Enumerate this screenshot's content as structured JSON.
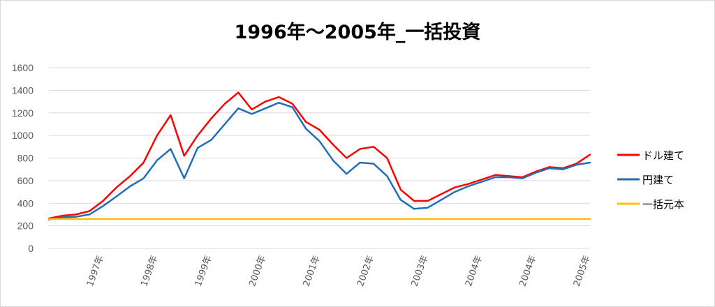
{
  "chart_data": {
    "type": "line",
    "title": "1996年～2005年_一括投資",
    "xlabel": "",
    "ylabel": "",
    "ylim": [
      0,
      1600
    ],
    "yticks": [
      0,
      200,
      400,
      600,
      800,
      1000,
      1200,
      1400,
      1600
    ],
    "grid": true,
    "legend_position": "right",
    "x_tick_labels": [
      "1997年",
      "1998年",
      "1999年",
      "2000年",
      "2001年",
      "2002年",
      "2003年",
      "2004年",
      "2004年",
      "2005年"
    ],
    "x": [
      0,
      0.25,
      0.5,
      0.75,
      1.0,
      1.25,
      1.5,
      1.75,
      2.0,
      2.25,
      2.5,
      2.75,
      3.0,
      3.25,
      3.5,
      3.75,
      4.0,
      4.25,
      4.5,
      4.75,
      5.0,
      5.25,
      5.5,
      5.75,
      6.0,
      6.25,
      6.5,
      6.75,
      7.0,
      7.25,
      7.5,
      7.75,
      8.0,
      8.25,
      8.5,
      8.75,
      9.0,
      9.25,
      9.5,
      9.75,
      10.0
    ],
    "series": [
      {
        "name": "ドル建て",
        "color": "#ff0000",
        "values": [
          265,
          290,
          300,
          330,
          420,
          540,
          640,
          760,
          1000,
          1180,
          820,
          1000,
          1150,
          1280,
          1380,
          1230,
          1300,
          1340,
          1280,
          1120,
          1050,
          920,
          800,
          880,
          900,
          800,
          520,
          420,
          420,
          480,
          540,
          570,
          610,
          650,
          640,
          630,
          680,
          720,
          710,
          750,
          830
        ]
      },
      {
        "name": "円建て",
        "color": "#1f6fb8",
        "values": [
          255,
          275,
          280,
          300,
          375,
          460,
          550,
          620,
          780,
          880,
          620,
          890,
          960,
          1100,
          1240,
          1190,
          1240,
          1290,
          1250,
          1060,
          950,
          780,
          660,
          760,
          750,
          640,
          430,
          350,
          360,
          430,
          500,
          550,
          590,
          630,
          630,
          620,
          670,
          710,
          700,
          740,
          760
        ]
      },
      {
        "name": "一括元本",
        "color": "#ffc000",
        "values": [
          260,
          260,
          260,
          260,
          260,
          260,
          260,
          260,
          260,
          260,
          260,
          260,
          260,
          260,
          260,
          260,
          260,
          260,
          260,
          260,
          260,
          260,
          260,
          260,
          260,
          260,
          260,
          260,
          260,
          260,
          260,
          260,
          260,
          260,
          260,
          260,
          260,
          260,
          260,
          260,
          260
        ]
      }
    ]
  }
}
